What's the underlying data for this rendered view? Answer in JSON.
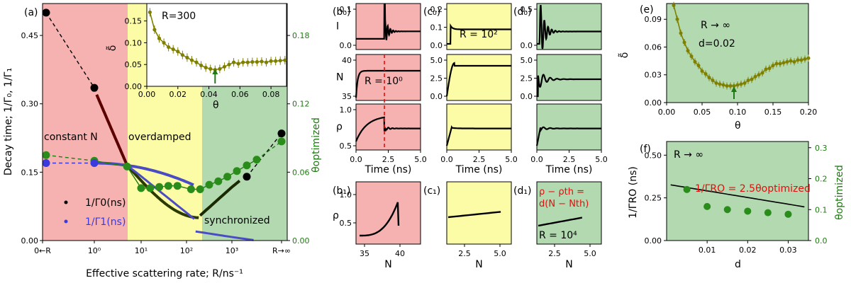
{
  "colors": {
    "red": "#f6b1b1",
    "yellow": "#fdfca6",
    "green": "#b2d9b0",
    "olive": "#808000",
    "dgreen": "#1f7a12",
    "blue": "#3a3adf",
    "mblue": "#4b4bc4"
  },
  "chart_data": [
    {
      "panel": "a",
      "type": "scatter",
      "panel_label": "(a)",
      "xlabel": "Effective scattering rate; R/ns⁻¹",
      "ylabel": "Decay time; 1/Γ₀, 1/Γ₁",
      "y2label": "θoptimized",
      "xticks": [
        "0←R",
        "10⁰",
        "10¹",
        "10²",
        "10³",
        "R→∞"
      ],
      "yticks": [
        "0.00",
        "0.15",
        "0.30",
        "0.45"
      ],
      "y2ticks": [
        "0.00",
        "0.06",
        "0.12",
        "0.18"
      ],
      "ylim": [
        0,
        0.52
      ],
      "y2lim": [
        0,
        0.208
      ],
      "regions": [
        "constant N",
        "overdamped",
        "synchronized"
      ],
      "legend": [
        "1/Γ0(ns)",
        "1/Γ1(ns)"
      ],
      "series": [
        {
          "name": "1/Γ0",
          "x": [
            -1,
            0,
            2.3,
            3.3,
            4
          ],
          "y": [
            0.5,
            0.335,
            0.05,
            0.14,
            0.235
          ]
        },
        {
          "name": "1/Γ1",
          "x": [
            -1,
            0
          ],
          "y": [
            0.17,
            0.17
          ]
        },
        {
          "name": "θoptimized",
          "x": [
            -1,
            0,
            0.7,
            1,
            1.2,
            1.4,
            1.6,
            1.8,
            2.1,
            2.3,
            2.5,
            2.7,
            2.9,
            3.1,
            3.3,
            3.5,
            4
          ],
          "y": [
            0.075,
            0.07,
            0.065,
            0.046,
            0.046,
            0.047,
            0.048,
            0.048,
            0.045,
            0.045,
            0.049,
            0.052,
            0.056,
            0.061,
            0.066,
            0.071,
            0.087
          ]
        }
      ],
      "inset": {
        "title": "R=300",
        "xlabel": "θ",
        "ylabel": "δ̃",
        "xticks": [
          "0.00",
          "0.02",
          "0.04",
          "0.06",
          "0.08"
        ],
        "yticks": [
          "0.00",
          "0.05",
          "0.10",
          "0.15"
        ],
        "x": [
          0.002,
          0.005,
          0.008,
          0.011,
          0.014,
          0.017,
          0.02,
          0.023,
          0.026,
          0.029,
          0.032,
          0.035,
          0.038,
          0.041,
          0.044,
          0.047,
          0.05,
          0.053,
          0.056,
          0.059,
          0.062,
          0.065,
          0.068,
          0.071,
          0.074,
          0.077,
          0.08,
          0.083,
          0.086,
          0.089
        ],
        "y": [
          0.17,
          0.13,
          0.11,
          0.1,
          0.09,
          0.085,
          0.08,
          0.072,
          0.066,
          0.06,
          0.055,
          0.048,
          0.043,
          0.04,
          0.038,
          0.04,
          0.045,
          0.05,
          0.055,
          0.052,
          0.055,
          0.055,
          0.056,
          0.056,
          0.057,
          0.055,
          0.058,
          0.058,
          0.059,
          0.06
        ]
      }
    },
    {
      "panel": "b0",
      "type": "line",
      "panel_label": "(b₀)",
      "ylabel": "I",
      "yticks": [
        "0.0",
        "0.1"
      ]
    },
    {
      "panel": "c0",
      "type": "line",
      "panel_label": "(c₀)",
      "annotation": "R = 10²",
      "yticks": [
        "0.0",
        "0.1",
        "0.2"
      ]
    },
    {
      "panel": "d0",
      "type": "line",
      "panel_label": "(d₀)",
      "yticks": [
        "0.0",
        "0.5"
      ]
    },
    {
      "panel": "b_mid",
      "type": "line",
      "ylabel": "N",
      "annotation": "R = 10⁰",
      "yticks": [
        "35",
        "40"
      ]
    },
    {
      "panel": "c_mid",
      "type": "line",
      "yticks": [
        "0.0",
        "2.5",
        "5.0"
      ]
    },
    {
      "panel": "d_mid",
      "type": "line",
      "yticks": [
        "0.0",
        "2.5",
        "5.0"
      ]
    },
    {
      "panel": "b_rho",
      "type": "line",
      "ylabel": "ρ",
      "xlabel": "Time (ns)",
      "xticks": [
        "0.0",
        "2.5",
        "5.0"
      ],
      "yticks": [
        "0.5",
        "1.0"
      ]
    },
    {
      "panel": "c_rho",
      "type": "line",
      "xlabel": "Time (ns)",
      "xticks": [
        "0.0",
        "2.5",
        "5.0"
      ]
    },
    {
      "panel": "d_rho",
      "type": "line",
      "xlabel": "Time (ns)",
      "xticks": [
        "0.0",
        "2.5",
        "5.0"
      ]
    },
    {
      "panel": "b1",
      "type": "line",
      "panel_label": "(b₁)",
      "ylabel": "ρ",
      "xlabel": "N",
      "xticks": [
        "35",
        "40"
      ],
      "yticks": [
        "0.5",
        "1.0"
      ]
    },
    {
      "panel": "c1",
      "type": "line",
      "panel_label": "(c₁)",
      "xlabel": "N",
      "xticks": [
        "2.5",
        "5.0"
      ]
    },
    {
      "panel": "d1",
      "type": "line",
      "panel_label": "(d₁)",
      "xlabel": "N",
      "xticks": [
        "2.5",
        "5.0"
      ],
      "annotation": "R = 10⁴",
      "annotation2": "ρ − ρth =",
      "annotation3": "d(N − Nth)"
    },
    {
      "panel": "e",
      "type": "scatter",
      "panel_label": "(e)",
      "xlabel": "θ",
      "ylabel": "δ̃",
      "annotation": "R → ∞",
      "annotation2": "d=0.02",
      "xticks": [
        "0.00",
        "0.05",
        "0.10",
        "0.15",
        "0.20"
      ],
      "yticks": [
        "0.00",
        "0.03",
        "0.06",
        "0.09"
      ],
      "x": [
        0.01,
        0.015,
        0.02,
        0.025,
        0.03,
        0.035,
        0.04,
        0.045,
        0.05,
        0.055,
        0.06,
        0.065,
        0.07,
        0.075,
        0.08,
        0.085,
        0.09,
        0.095,
        0.1,
        0.105,
        0.11,
        0.115,
        0.12,
        0.125,
        0.13,
        0.135,
        0.14,
        0.145,
        0.15,
        0.155,
        0.16,
        0.165,
        0.17,
        0.175,
        0.18,
        0.185,
        0.19,
        0.195,
        0.2
      ],
      "y": [
        0.105,
        0.09,
        0.075,
        0.065,
        0.056,
        0.05,
        0.044,
        0.04,
        0.034,
        0.031,
        0.027,
        0.024,
        0.021,
        0.02,
        0.019,
        0.018,
        0.018,
        0.018,
        0.019,
        0.02,
        0.021,
        0.024,
        0.025,
        0.028,
        0.03,
        0.032,
        0.036,
        0.037,
        0.04,
        0.042,
        0.042,
        0.043,
        0.044,
        0.045,
        0.044,
        0.046,
        0.046,
        0.047,
        0.048
      ]
    },
    {
      "panel": "f",
      "type": "scatter",
      "panel_label": "(f)",
      "xlabel": "d",
      "ylabel": "1/ΓRO (ns)",
      "y2label": "θoptimized",
      "annotation": "R → ∞",
      "formula": "1/ΓRO = 2.5θoptimized",
      "xticks": [
        "0.01",
        "0.02",
        "0.03"
      ],
      "yticks": [
        "0.00",
        "0.25",
        "0.50"
      ],
      "y2ticks": [
        "0.0",
        "0.1",
        "0.2",
        "0.3"
      ],
      "x": [
        0.005,
        0.01,
        0.015,
        0.02,
        0.025,
        0.03
      ],
      "y2": [
        0.165,
        0.11,
        0.1,
        0.095,
        0.09,
        0.085
      ]
    }
  ]
}
